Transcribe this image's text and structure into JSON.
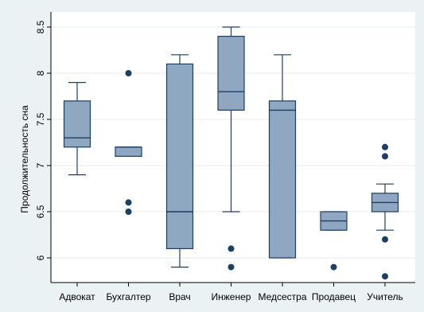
{
  "chart_data": {
    "type": "boxplot",
    "ylabel": "Продолжительность сна",
    "xlabel": "",
    "ylim": [
      5.75,
      8.55
    ],
    "yticks": [
      6,
      6.5,
      7,
      7.5,
      8,
      8.5
    ],
    "ytick_labels": [
      "6",
      "6.5",
      "7",
      "7.5",
      "8",
      "8.5"
    ],
    "grid": true,
    "colors": {
      "box_fill": "#8fa7c0",
      "box_stroke": "#1d3f63",
      "outlier": "#1d3f63",
      "plot_bg": "#ffffff",
      "figure_bg": "#eaf2f3",
      "grid": "#e3ebee"
    },
    "categories": [
      "Адвокат",
      "Бухгалтер",
      "Врач",
      "Инженер",
      "Медсестра",
      "Продавец",
      "Учитель"
    ],
    "boxes": [
      {
        "category": "Адвокат",
        "whisker_low": 6.9,
        "q1": 7.2,
        "median": 7.3,
        "q3": 7.7,
        "whisker_high": 7.9,
        "outliers": []
      },
      {
        "category": "Бухгалтер",
        "whisker_low": 7.1,
        "q1": 7.1,
        "median": 7.2,
        "q3": 7.2,
        "whisker_high": 7.2,
        "outliers": [
          8.0,
          6.6,
          6.5
        ]
      },
      {
        "category": "Врач",
        "whisker_low": 5.9,
        "q1": 6.1,
        "median": 6.5,
        "q3": 8.1,
        "whisker_high": 8.2,
        "outliers": []
      },
      {
        "category": "Инженер",
        "whisker_low": 6.5,
        "q1": 7.6,
        "median": 7.8,
        "q3": 8.4,
        "whisker_high": 8.5,
        "outliers": [
          6.1,
          5.9
        ]
      },
      {
        "category": "Медсестра",
        "whisker_low": 6.0,
        "q1": 6.0,
        "median": 7.6,
        "q3": 7.7,
        "whisker_high": 8.2,
        "outliers": []
      },
      {
        "category": "Продавец",
        "whisker_low": 6.3,
        "q1": 6.3,
        "median": 6.4,
        "q3": 6.5,
        "whisker_high": 6.5,
        "outliers": [
          5.9
        ]
      },
      {
        "category": "Учитель",
        "whisker_low": 6.3,
        "q1": 6.5,
        "median": 6.6,
        "q3": 6.7,
        "whisker_high": 6.8,
        "outliers": [
          7.2,
          7.1,
          6.2,
          5.8
        ]
      }
    ]
  }
}
